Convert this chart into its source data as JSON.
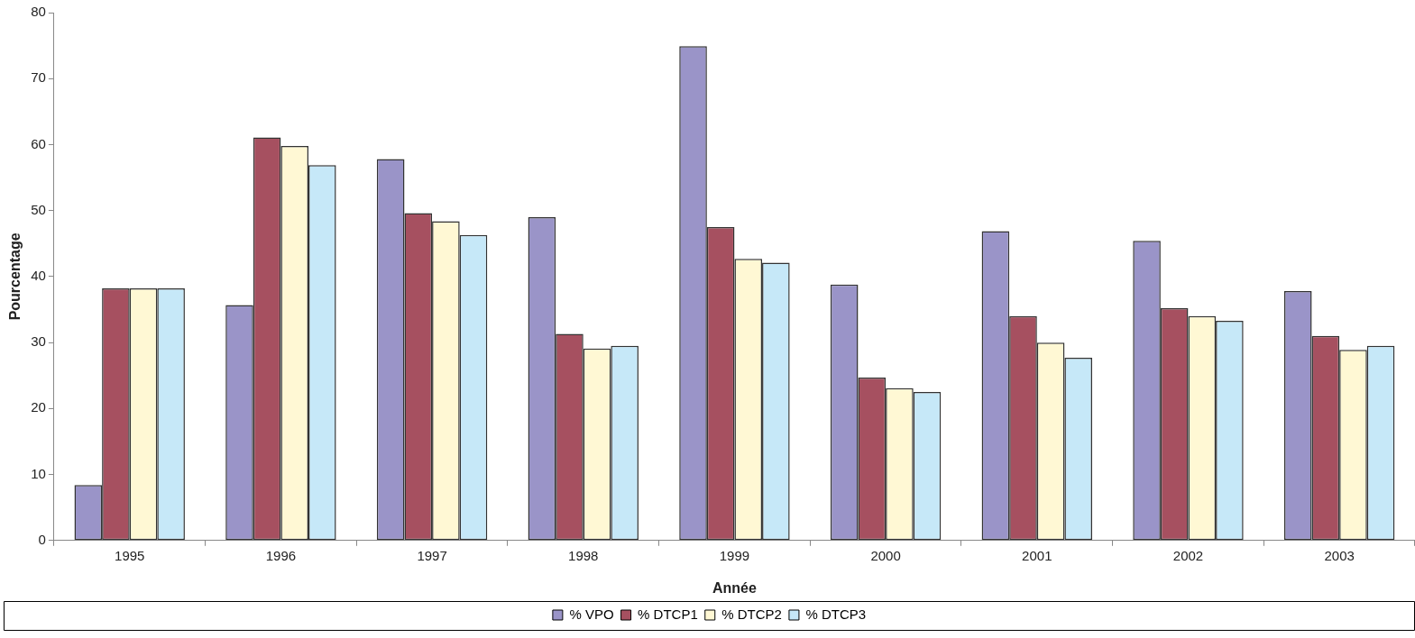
{
  "chart_data": {
    "type": "bar",
    "xlabel": "Année",
    "ylabel": "Pourcentage",
    "categories": [
      "1995",
      "1996",
      "1997",
      "1998",
      "1999",
      "2000",
      "2001",
      "2002",
      "2003"
    ],
    "series": [
      {
        "name": "% VPO",
        "color": "#9a94c8",
        "values": [
          8.4,
          35.7,
          57.8,
          49.0,
          74.9,
          38.8,
          46.9,
          45.4,
          37.8
        ]
      },
      {
        "name": "% DTCP1",
        "color": "#a65060",
        "values": [
          38.2,
          61.1,
          49.6,
          31.3,
          47.5,
          24.7,
          34.0,
          35.2,
          31.0
        ]
      },
      {
        "name": "% DTCP2",
        "color": "#fff8d4",
        "values": [
          38.2,
          59.8,
          48.4,
          29.1,
          42.7,
          23.1,
          30.0,
          34.0,
          28.9
        ]
      },
      {
        "name": "% DTCP3",
        "color": "#c6e8f8",
        "values": [
          38.2,
          56.9,
          46.3,
          29.5,
          42.1,
          22.5,
          27.7,
          33.3,
          29.5
        ]
      }
    ],
    "ylim": [
      0,
      80
    ],
    "yticks": [
      0,
      10,
      20,
      30,
      40,
      50,
      60,
      70,
      80
    ],
    "legend": "bottom"
  }
}
